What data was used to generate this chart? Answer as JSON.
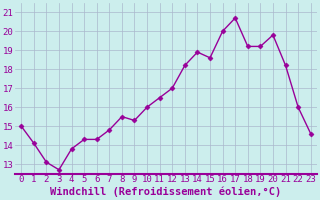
{
  "x": [
    0,
    1,
    2,
    3,
    4,
    5,
    6,
    7,
    8,
    9,
    10,
    11,
    12,
    13,
    14,
    15,
    16,
    17,
    18,
    19,
    20,
    21,
    22,
    23
  ],
  "y": [
    15.0,
    14.1,
    13.1,
    12.7,
    13.8,
    14.3,
    14.3,
    14.8,
    15.5,
    15.3,
    16.0,
    16.5,
    17.0,
    18.2,
    18.9,
    18.6,
    20.0,
    20.7,
    19.2,
    19.2,
    19.8,
    18.2,
    16.0,
    14.6
  ],
  "line_color": "#990099",
  "marker": "D",
  "markersize": 2.5,
  "linewidth": 1,
  "bg_color": "#cceeed",
  "grid_color": "#aab8cc",
  "xlabel": "Windchill (Refroidissement éolien,°C)",
  "xlabel_color": "#990099",
  "xlabel_fontsize": 7.5,
  "tick_color": "#990099",
  "tick_fontsize": 6.5,
  "ylim": [
    12.5,
    21.5
  ],
  "yticks": [
    13,
    14,
    15,
    16,
    17,
    18,
    19,
    20,
    21
  ],
  "xticks": [
    0,
    1,
    2,
    3,
    4,
    5,
    6,
    7,
    8,
    9,
    10,
    11,
    12,
    13,
    14,
    15,
    16,
    17,
    18,
    19,
    20,
    21,
    22,
    23
  ],
  "axis_line_color": "#990099",
  "fig_width": 3.2,
  "fig_height": 2.0,
  "dpi": 100
}
